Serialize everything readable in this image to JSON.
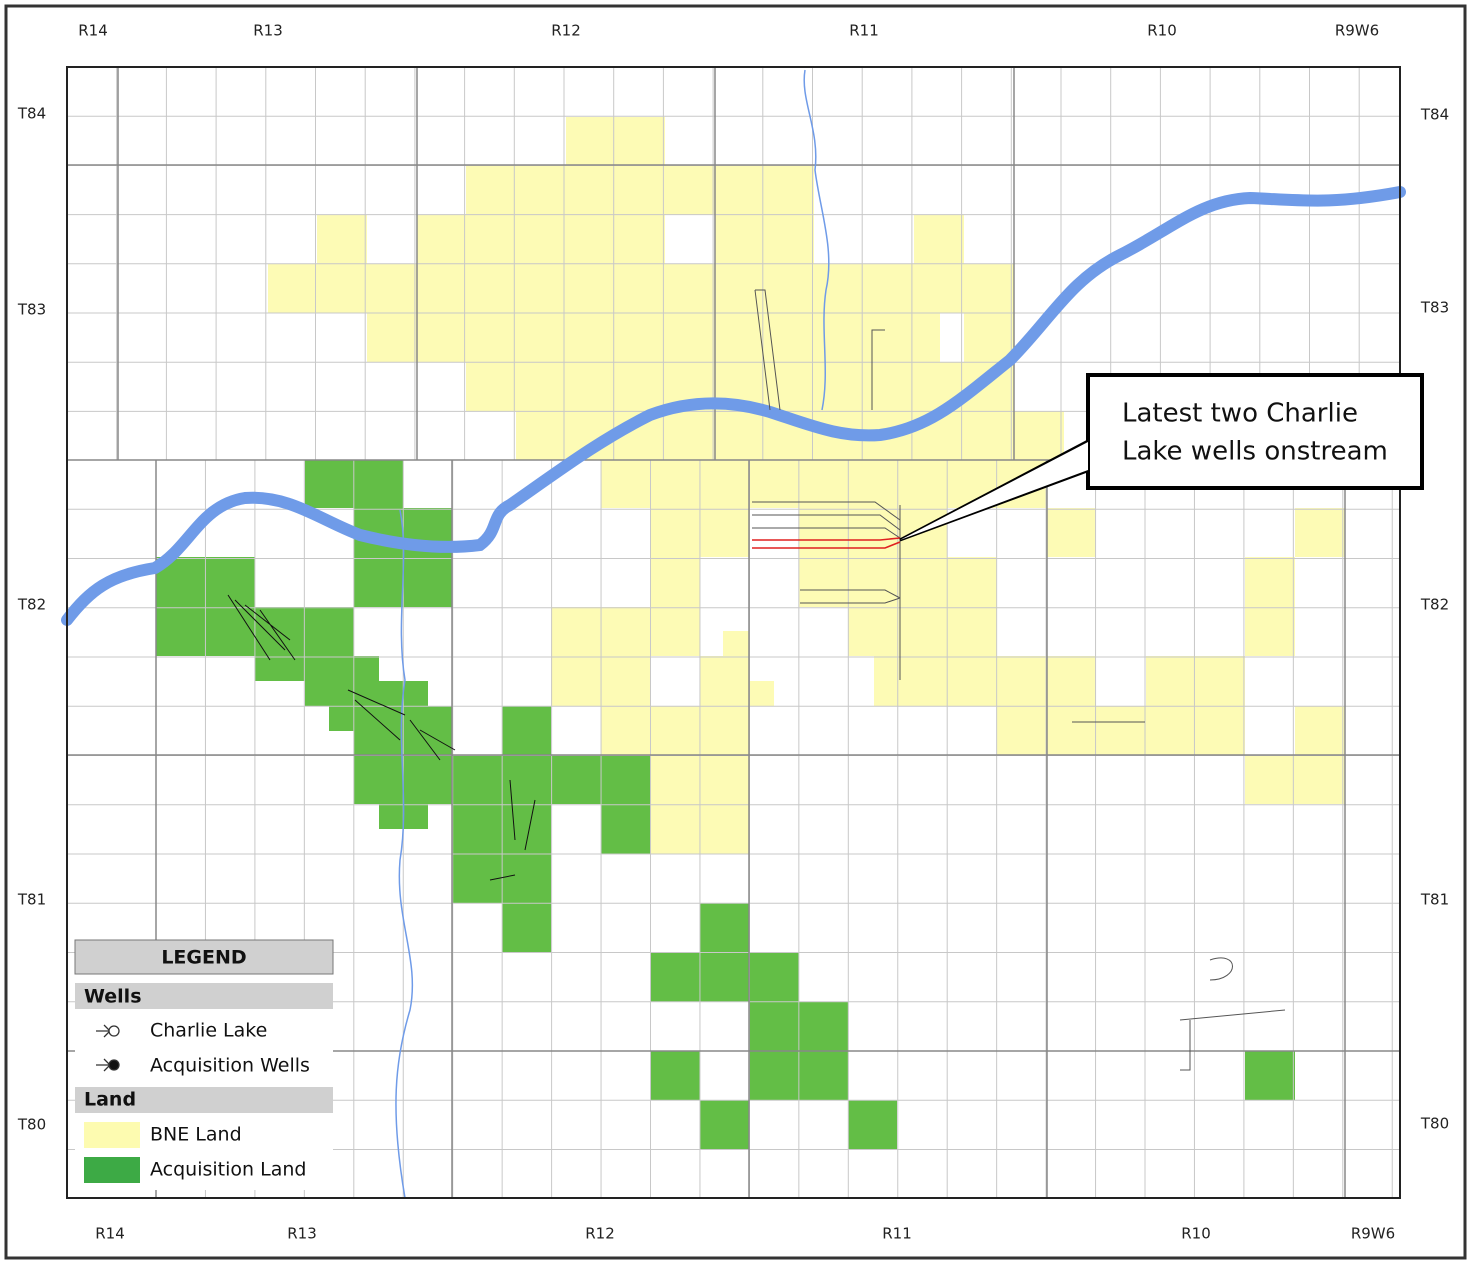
{
  "range_labels_top": [
    "R14",
    "R13",
    "R12",
    "R11",
    "R10",
    "R9W6"
  ],
  "range_labels_bottom": [
    "R14",
    "R13",
    "R12",
    "R11",
    "R10",
    "R9W6"
  ],
  "township_labels_left": [
    "T84",
    "T83",
    "T82",
    "T81",
    "T80"
  ],
  "township_labels_right": [
    "T84",
    "T83",
    "T82",
    "T81",
    "T80"
  ],
  "legend": {
    "title": "LEGEND",
    "wells_heading": "Wells",
    "wells": [
      "Charlie Lake",
      "Acquisition Wells"
    ],
    "land_heading": "Land",
    "land": [
      "BNE Land",
      "Acquisition Land"
    ]
  },
  "callout": {
    "lines": [
      "Latest two Charlie",
      "Lake wells onstream"
    ]
  }
}
